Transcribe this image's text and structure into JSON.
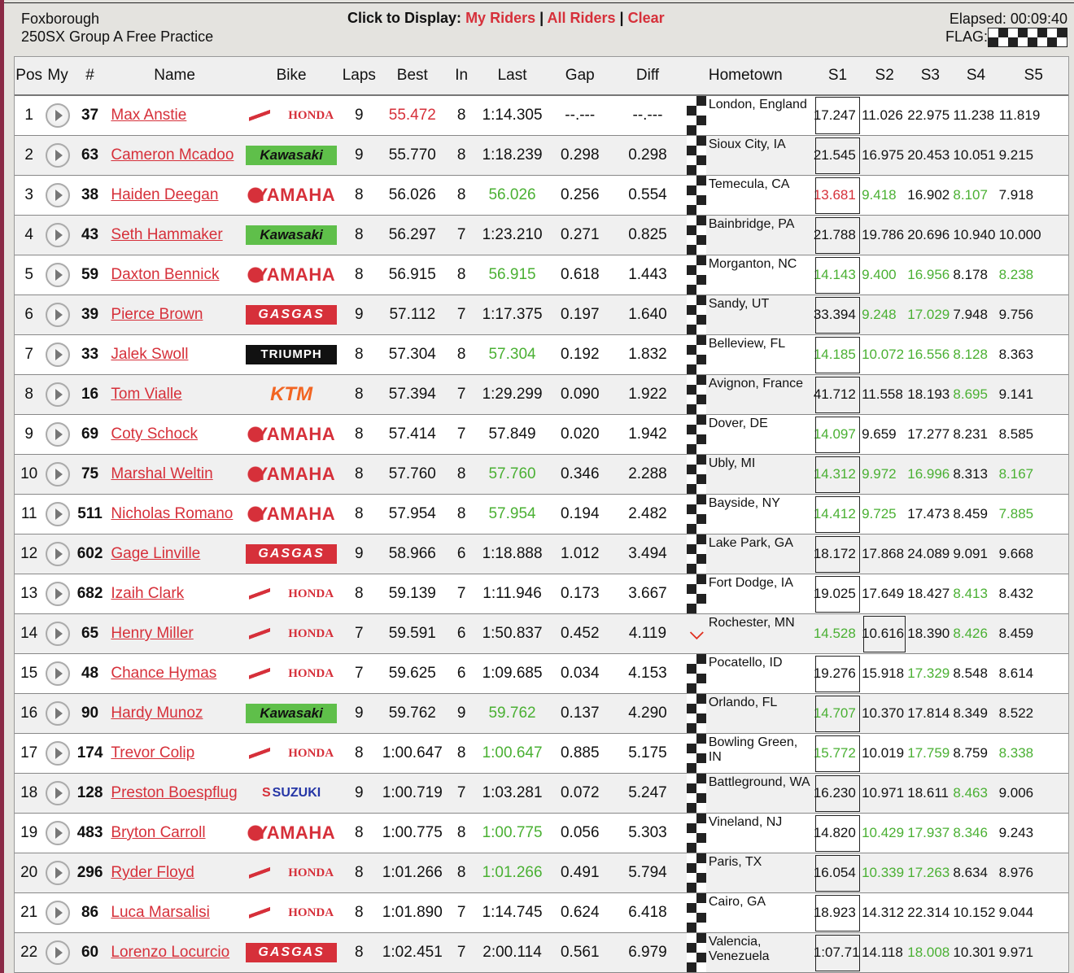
{
  "header": {
    "venue": "Foxborough",
    "session": "250SX Group A Free Practice",
    "click_label": "Click to Display:",
    "my_riders": "My Riders",
    "all_riders": "All Riders",
    "clear": "Clear",
    "sep": "|",
    "elapsed": "Elapsed: 00:09:40",
    "flag_label": "FLAG:",
    "flag_state": "checkered"
  },
  "colors": {
    "accent_red": "#d6303a",
    "green": "#4ab033"
  },
  "columns": [
    "Pos",
    "My",
    "#",
    "Name",
    "Bike",
    "Laps",
    "Best",
    "In",
    "Last",
    "Gap",
    "Diff",
    "",
    "Hometown",
    "S1",
    "S2",
    "S3",
    "S4",
    "S5"
  ],
  "brands": {
    "honda": "HONDA",
    "kawasaki": "Kawasaki",
    "yamaha": "YAMAHA",
    "gasgas": "GASGAS",
    "triumph": "TRIUMPH",
    "ktm": "KTM",
    "suzuki": "SUZUKI"
  },
  "rows": [
    {
      "pos": "1",
      "num": "37",
      "name": "Max Anstie",
      "bike": "honda",
      "laps": "9",
      "best": "55.472",
      "best_c": "r",
      "in": "8",
      "last": "1:14.305",
      "last_c": "",
      "gap": "--.---",
      "diff": "--.---",
      "status": "checkered",
      "hometown": "London, England",
      "s": [
        "17.247",
        "11.026",
        "22.975",
        "11.238",
        "11.819"
      ],
      "sc": [
        "",
        "",
        "",
        "",
        ""
      ],
      "box": 0
    },
    {
      "pos": "2",
      "num": "63",
      "name": "Cameron Mcadoo",
      "bike": "kawasaki",
      "laps": "9",
      "best": "55.770",
      "best_c": "",
      "in": "8",
      "last": "1:18.239",
      "last_c": "",
      "gap": "0.298",
      "diff": "0.298",
      "status": "checkered",
      "hometown": "Sioux City, IA",
      "s": [
        "21.545",
        "16.975",
        "20.453",
        "10.051",
        "9.215"
      ],
      "sc": [
        "",
        "",
        "",
        "",
        ""
      ],
      "box": 0
    },
    {
      "pos": "3",
      "num": "38",
      "name": "Haiden Deegan",
      "bike": "yamaha",
      "laps": "8",
      "best": "56.026",
      "best_c": "",
      "in": "8",
      "last": "56.026",
      "last_c": "g",
      "gap": "0.256",
      "diff": "0.554",
      "status": "checkered",
      "hometown": "Temecula, CA",
      "s": [
        "13.681",
        "9.418",
        "16.902",
        "8.107",
        "7.918"
      ],
      "sc": [
        "r",
        "g",
        "",
        "g",
        ""
      ],
      "box": 0
    },
    {
      "pos": "4",
      "num": "43",
      "name": "Seth Hammaker",
      "bike": "kawasaki",
      "laps": "8",
      "best": "56.297",
      "best_c": "",
      "in": "7",
      "last": "1:23.210",
      "last_c": "",
      "gap": "0.271",
      "diff": "0.825",
      "status": "checkered",
      "hometown": "Bainbridge, PA",
      "s": [
        "21.788",
        "19.786",
        "20.696",
        "10.940",
        "10.000"
      ],
      "sc": [
        "",
        "",
        "",
        "",
        ""
      ],
      "box": 0
    },
    {
      "pos": "5",
      "num": "59",
      "name": "Daxton Bennick",
      "bike": "yamaha",
      "laps": "8",
      "best": "56.915",
      "best_c": "",
      "in": "8",
      "last": "56.915",
      "last_c": "g",
      "gap": "0.618",
      "diff": "1.443",
      "status": "checkered",
      "hometown": "Morganton, NC",
      "s": [
        "14.143",
        "9.400",
        "16.956",
        "8.178",
        "8.238"
      ],
      "sc": [
        "g",
        "g",
        "g",
        "",
        "g"
      ],
      "box": 0
    },
    {
      "pos": "6",
      "num": "39",
      "name": "Pierce Brown",
      "bike": "gasgas",
      "laps": "9",
      "best": "57.112",
      "best_c": "",
      "in": "7",
      "last": "1:17.375",
      "last_c": "",
      "gap": "0.197",
      "diff": "1.640",
      "status": "checkered",
      "hometown": "Sandy, UT",
      "s": [
        "33.394",
        "9.248",
        "17.029",
        "7.948",
        "9.756"
      ],
      "sc": [
        "",
        "g",
        "g",
        "",
        ""
      ],
      "box": 0
    },
    {
      "pos": "7",
      "num": "33",
      "name": "Jalek Swoll",
      "bike": "triumph",
      "laps": "8",
      "best": "57.304",
      "best_c": "",
      "in": "8",
      "last": "57.304",
      "last_c": "g",
      "gap": "0.192",
      "diff": "1.832",
      "status": "checkered",
      "hometown": "Belleview, FL",
      "s": [
        "14.185",
        "10.072",
        "16.556",
        "8.128",
        "8.363"
      ],
      "sc": [
        "g",
        "g",
        "g",
        "g",
        ""
      ],
      "box": 0
    },
    {
      "pos": "8",
      "num": "16",
      "name": "Tom Vialle",
      "bike": "ktm",
      "laps": "8",
      "best": "57.394",
      "best_c": "",
      "in": "7",
      "last": "1:29.299",
      "last_c": "",
      "gap": "0.090",
      "diff": "1.922",
      "status": "checkered",
      "hometown": "Avignon, France",
      "s": [
        "41.712",
        "11.558",
        "18.193",
        "8.695",
        "9.141"
      ],
      "sc": [
        "",
        "",
        "",
        "g",
        ""
      ],
      "box": 0
    },
    {
      "pos": "9",
      "num": "69",
      "name": "Coty Schock",
      "bike": "yamaha",
      "laps": "8",
      "best": "57.414",
      "best_c": "",
      "in": "7",
      "last": "57.849",
      "last_c": "",
      "gap": "0.020",
      "diff": "1.942",
      "status": "checkered",
      "hometown": "Dover, DE",
      "s": [
        "14.097",
        "9.659",
        "17.277",
        "8.231",
        "8.585"
      ],
      "sc": [
        "g",
        "",
        "",
        "",
        ""
      ],
      "box": 0
    },
    {
      "pos": "10",
      "num": "75",
      "name": "Marshal Weltin",
      "bike": "yamaha",
      "laps": "8",
      "best": "57.760",
      "best_c": "",
      "in": "8",
      "last": "57.760",
      "last_c": "g",
      "gap": "0.346",
      "diff": "2.288",
      "status": "checkered",
      "hometown": "Ubly, MI",
      "s": [
        "14.312",
        "9.972",
        "16.996",
        "8.313",
        "8.167"
      ],
      "sc": [
        "g",
        "g",
        "g",
        "",
        "g"
      ],
      "box": 0
    },
    {
      "pos": "11",
      "num": "511",
      "name": "Nicholas Romano",
      "bike": "yamaha",
      "laps": "8",
      "best": "57.954",
      "best_c": "",
      "in": "8",
      "last": "57.954",
      "last_c": "g",
      "gap": "0.194",
      "diff": "2.482",
      "status": "checkered",
      "hometown": "Bayside, NY",
      "s": [
        "14.412",
        "9.725",
        "17.473",
        "8.459",
        "7.885"
      ],
      "sc": [
        "g",
        "g",
        "",
        "",
        "g"
      ],
      "box": 0
    },
    {
      "pos": "12",
      "num": "602",
      "name": "Gage Linville",
      "bike": "gasgas",
      "laps": "9",
      "best": "58.966",
      "best_c": "",
      "in": "6",
      "last": "1:18.888",
      "last_c": "",
      "gap": "1.012",
      "diff": "3.494",
      "status": "checkered",
      "hometown": "Lake Park, GA",
      "s": [
        "18.172",
        "17.868",
        "24.089",
        "9.091",
        "9.668"
      ],
      "sc": [
        "",
        "",
        "",
        "",
        ""
      ],
      "box": 0
    },
    {
      "pos": "13",
      "num": "682",
      "name": "Izaih Clark",
      "bike": "honda",
      "laps": "8",
      "best": "59.139",
      "best_c": "",
      "in": "7",
      "last": "1:11.946",
      "last_c": "",
      "gap": "0.173",
      "diff": "3.667",
      "status": "checkered",
      "hometown": "Fort Dodge, IA",
      "s": [
        "19.025",
        "17.649",
        "18.427",
        "8.413",
        "8.432"
      ],
      "sc": [
        "",
        "",
        "",
        "g",
        ""
      ],
      "box": 0
    },
    {
      "pos": "14",
      "num": "65",
      "name": "Henry Miller",
      "bike": "honda",
      "laps": "7",
      "best": "59.591",
      "best_c": "",
      "in": "6",
      "last": "1:50.837",
      "last_c": "",
      "gap": "0.452",
      "diff": "4.119",
      "status": "down",
      "hometown": "Rochester, MN",
      "s": [
        "14.528",
        "10.616",
        "18.390",
        "8.426",
        "8.459"
      ],
      "sc": [
        "g",
        "",
        "",
        "g",
        ""
      ],
      "box": 1
    },
    {
      "pos": "15",
      "num": "48",
      "name": "Chance Hymas",
      "bike": "honda",
      "laps": "7",
      "best": "59.625",
      "best_c": "",
      "in": "6",
      "last": "1:09.685",
      "last_c": "",
      "gap": "0.034",
      "diff": "4.153",
      "status": "checkered",
      "hometown": "Pocatello, ID",
      "s": [
        "19.276",
        "15.918",
        "17.329",
        "8.548",
        "8.614"
      ],
      "sc": [
        "",
        "",
        "g",
        "",
        ""
      ],
      "box": 0
    },
    {
      "pos": "16",
      "num": "90",
      "name": "Hardy Munoz",
      "bike": "kawasaki",
      "laps": "9",
      "best": "59.762",
      "best_c": "",
      "in": "9",
      "last": "59.762",
      "last_c": "g",
      "gap": "0.137",
      "diff": "4.290",
      "status": "checkered",
      "hometown": "Orlando, FL",
      "s": [
        "14.707",
        "10.370",
        "17.814",
        "8.349",
        "8.522"
      ],
      "sc": [
        "g",
        "",
        "",
        "",
        ""
      ],
      "box": 0
    },
    {
      "pos": "17",
      "num": "174",
      "name": "Trevor Colip",
      "bike": "honda",
      "laps": "8",
      "best": "1:00.647",
      "best_c": "",
      "in": "8",
      "last": "1:00.647",
      "last_c": "g",
      "gap": "0.885",
      "diff": "5.175",
      "status": "checkered",
      "hometown": "Bowling Green, IN",
      "s": [
        "15.772",
        "10.019",
        "17.759",
        "8.759",
        "8.338"
      ],
      "sc": [
        "g",
        "",
        "g",
        "",
        "g"
      ],
      "box": 0
    },
    {
      "pos": "18",
      "num": "128",
      "name": "Preston Boespflug",
      "bike": "suzuki",
      "laps": "9",
      "best": "1:00.719",
      "best_c": "",
      "in": "7",
      "last": "1:03.281",
      "last_c": "",
      "gap": "0.072",
      "diff": "5.247",
      "status": "checkered",
      "hometown": "Battleground, WA",
      "s": [
        "16.230",
        "10.971",
        "18.611",
        "8.463",
        "9.006"
      ],
      "sc": [
        "",
        "",
        "",
        "g",
        ""
      ],
      "box": 0
    },
    {
      "pos": "19",
      "num": "483",
      "name": "Bryton Carroll",
      "bike": "yamaha",
      "laps": "8",
      "best": "1:00.775",
      "best_c": "",
      "in": "8",
      "last": "1:00.775",
      "last_c": "g",
      "gap": "0.056",
      "diff": "5.303",
      "status": "checkered",
      "hometown": "Vineland, NJ",
      "s": [
        "14.820",
        "10.429",
        "17.937",
        "8.346",
        "9.243"
      ],
      "sc": [
        "",
        "g",
        "g",
        "g",
        ""
      ],
      "box": 0
    },
    {
      "pos": "20",
      "num": "296",
      "name": "Ryder Floyd",
      "bike": "honda",
      "laps": "8",
      "best": "1:01.266",
      "best_c": "",
      "in": "8",
      "last": "1:01.266",
      "last_c": "g",
      "gap": "0.491",
      "diff": "5.794",
      "status": "checkered",
      "hometown": "Paris, TX",
      "s": [
        "16.054",
        "10.339",
        "17.263",
        "8.634",
        "8.976"
      ],
      "sc": [
        "",
        "g",
        "g",
        "",
        ""
      ],
      "box": 0
    },
    {
      "pos": "21",
      "num": "86",
      "name": "Luca Marsalisi",
      "bike": "honda",
      "laps": "8",
      "best": "1:01.890",
      "best_c": "",
      "in": "7",
      "last": "1:14.745",
      "last_c": "",
      "gap": "0.624",
      "diff": "6.418",
      "status": "checkered",
      "hometown": "Cairo, GA",
      "s": [
        "18.923",
        "14.312",
        "22.314",
        "10.152",
        "9.044"
      ],
      "sc": [
        "",
        "",
        "",
        "",
        ""
      ],
      "box": 0
    },
    {
      "pos": "22",
      "num": "60",
      "name": "Lorenzo Locurcio",
      "bike": "gasgas",
      "laps": "8",
      "best": "1:02.451",
      "best_c": "",
      "in": "7",
      "last": "2:00.114",
      "last_c": "",
      "gap": "0.561",
      "diff": "6.979",
      "status": "checkered",
      "hometown": "Valencia, Venezuela",
      "s": [
        "1:07.71",
        "14.118",
        "18.008",
        "10.301",
        "9.971"
      ],
      "sc": [
        "",
        "",
        "g",
        "",
        ""
      ],
      "box": 0
    }
  ]
}
